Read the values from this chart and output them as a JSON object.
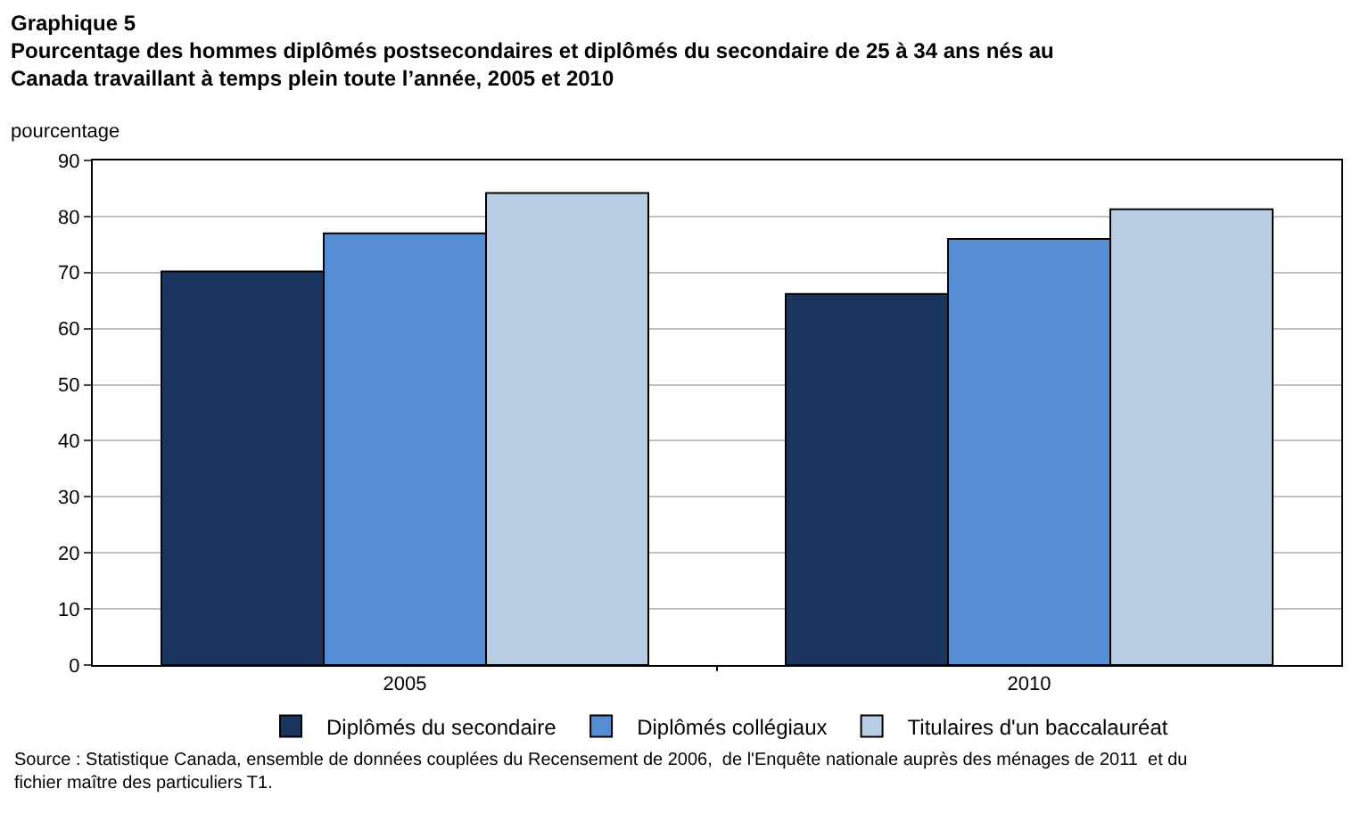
{
  "chart_data": {
    "type": "bar",
    "title": "Graphique 5",
    "subtitle": "Pourcentage des hommes diplômés postsecondaires et diplômés du secondaire de 25 à 34 ans nés au Canada travaillant à temps plein toute l’année, 2005 et 2010",
    "ylabel": "pourcentage",
    "categories": [
      "2005",
      "2010"
    ],
    "series": [
      {
        "name": "Diplômés du secondaire",
        "color": "#1a365e",
        "values": [
          70.2,
          66.2
        ]
      },
      {
        "name": "Diplômés collégiaux",
        "color": "#548dd4",
        "values": [
          77.0,
          76.0
        ]
      },
      {
        "name": "Titulaires d'un baccalauréat",
        "color": "#b9cde5",
        "values": [
          84.2,
          81.3
        ]
      }
    ],
    "ylim": [
      0,
      90
    ],
    "yticks": [
      0,
      10,
      20,
      30,
      40,
      50,
      60,
      70,
      80,
      90
    ],
    "grid": "y",
    "legend": "bottom",
    "annotations": [
      "Source : Statistique Canada, ensemble de données couplées du Recensement de 2006,  de l'Enquête nationale auprès des ménages de 2011  et du fichier maître des particuliers T1."
    ]
  }
}
